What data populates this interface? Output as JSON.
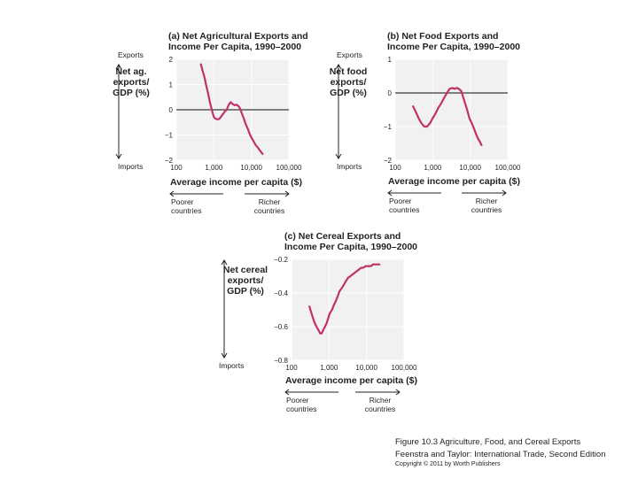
{
  "chart_data": [
    {
      "type": "line",
      "title": [
        "(a) Net Agricultural Exports and",
        "Income Per Capita, 1990–2000"
      ],
      "ylabel": [
        "Net ag.",
        "exports/",
        "GDP (%)"
      ],
      "top_label": "Exports",
      "bottom_label": "Imports",
      "xlabel": "Average income per capita ($)",
      "x_scale": "log",
      "xlim": [
        100,
        100000
      ],
      "xticks": [
        "100",
        "1,000",
        "10,000",
        "100,000"
      ],
      "ylim": [
        -2,
        2
      ],
      "yticks": [
        "2",
        "1",
        "0",
        "−1",
        "−2"
      ],
      "left_note": [
        "Poorer",
        "countries"
      ],
      "right_note": [
        "Richer",
        "countries"
      ],
      "series": [
        {
          "x": [
            450,
            500,
            560,
            620,
            700,
            800,
            900,
            1000,
            1100,
            1250,
            1400,
            1600,
            1800,
            2000,
            2200,
            2500,
            2800,
            3200,
            3600,
            4000,
            4500,
            5000,
            5600,
            6300,
            7000,
            8000,
            9000,
            10000,
            11500,
            13000,
            15000,
            17000,
            20000
          ],
          "y": [
            1.8,
            1.55,
            1.3,
            1.0,
            0.65,
            0.25,
            -0.05,
            -0.28,
            -0.35,
            -0.38,
            -0.36,
            -0.25,
            -0.15,
            -0.05,
            0.0,
            0.2,
            0.3,
            0.22,
            0.18,
            0.2,
            0.15,
            0.05,
            -0.15,
            -0.35,
            -0.55,
            -0.75,
            -0.95,
            -1.1,
            -1.25,
            -1.4,
            -1.5,
            -1.62,
            -1.75
          ]
        }
      ]
    },
    {
      "type": "line",
      "title": [
        "(b) Net Food Exports and",
        "Income Per Capita, 1990–2000"
      ],
      "ylabel": [
        "Net food",
        "exports/",
        "GDP (%)"
      ],
      "top_label": "Exports",
      "bottom_label": "Imports",
      "xlabel": "Average income per capita ($)",
      "x_scale": "log",
      "xlim": [
        100,
        100000
      ],
      "xticks": [
        "100",
        "1,000",
        "10,000",
        "100,000"
      ],
      "ylim": [
        -2,
        1
      ],
      "yticks": [
        "1",
        "0",
        "−1",
        "−2"
      ],
      "left_note": [
        "Poorer",
        "countries"
      ],
      "right_note": [
        "Richer",
        "countries"
      ],
      "series": [
        {
          "x": [
            300,
            350,
            420,
            500,
            600,
            700,
            850,
            1000,
            1200,
            1400,
            1700,
            2000,
            2400,
            2800,
            3300,
            3800,
            4400,
            5000,
            5800,
            6600,
            7500,
            8500,
            9500,
            11000,
            12500,
            14000,
            16000,
            18000,
            20000
          ],
          "y": [
            -0.4,
            -0.55,
            -0.75,
            -0.9,
            -1.0,
            -1.0,
            -0.9,
            -0.75,
            -0.6,
            -0.45,
            -0.3,
            -0.15,
            0.0,
            0.12,
            0.15,
            0.12,
            0.15,
            0.12,
            0.05,
            -0.15,
            -0.35,
            -0.55,
            -0.75,
            -0.9,
            -1.05,
            -1.2,
            -1.35,
            -1.45,
            -1.55
          ]
        }
      ]
    },
    {
      "type": "line",
      "title": [
        "(c) Net Cereal Exports and",
        "Income Per Capita, 1990–2000"
      ],
      "ylabel": [
        "Net cereal",
        "exports/",
        "GDP (%)"
      ],
      "top_label": "",
      "bottom_label": "Imports",
      "xlabel": "Average income per capita ($)",
      "x_scale": "log",
      "xlim": [
        100,
        100000
      ],
      "xticks": [
        "100",
        "1,000",
        "10,000",
        "100,000"
      ],
      "ylim": [
        -0.8,
        -0.2
      ],
      "yticks": [
        "−0.2",
        "−0.4",
        "−0.6",
        "−0.8"
      ],
      "left_note": [
        "Poorer",
        "countries"
      ],
      "right_note": [
        "Richer",
        "countries"
      ],
      "series": [
        {
          "x": [
            300,
            340,
            400,
            460,
            520,
            580,
            640,
            700,
            780,
            860,
            950,
            1050,
            1200,
            1350,
            1500,
            1700,
            1900,
            2200,
            2500,
            2800,
            3200,
            3700,
            4200,
            4800,
            5500,
            6300,
            7200,
            8200,
            9500,
            11000,
            13000,
            15000,
            17000,
            19000,
            22000
          ],
          "y": [
            -0.48,
            -0.52,
            -0.57,
            -0.6,
            -0.62,
            -0.64,
            -0.64,
            -0.62,
            -0.6,
            -0.58,
            -0.55,
            -0.52,
            -0.5,
            -0.47,
            -0.45,
            -0.42,
            -0.39,
            -0.37,
            -0.35,
            -0.33,
            -0.31,
            -0.3,
            -0.29,
            -0.28,
            -0.27,
            -0.26,
            -0.25,
            -0.25,
            -0.24,
            -0.24,
            -0.24,
            -0.23,
            -0.23,
            -0.23,
            -0.23
          ]
        }
      ]
    }
  ],
  "caption": {
    "line1": "Figure 10.3 Agriculture, Food, and Cereal Exports",
    "line2": "Feenstra and Taylor: International Trade, Second Edition",
    "line3": "Copyright © 2011 by Worth Publishers"
  },
  "colors": {
    "series": "#c0316a",
    "plot_background": "#f1f1f2"
  }
}
